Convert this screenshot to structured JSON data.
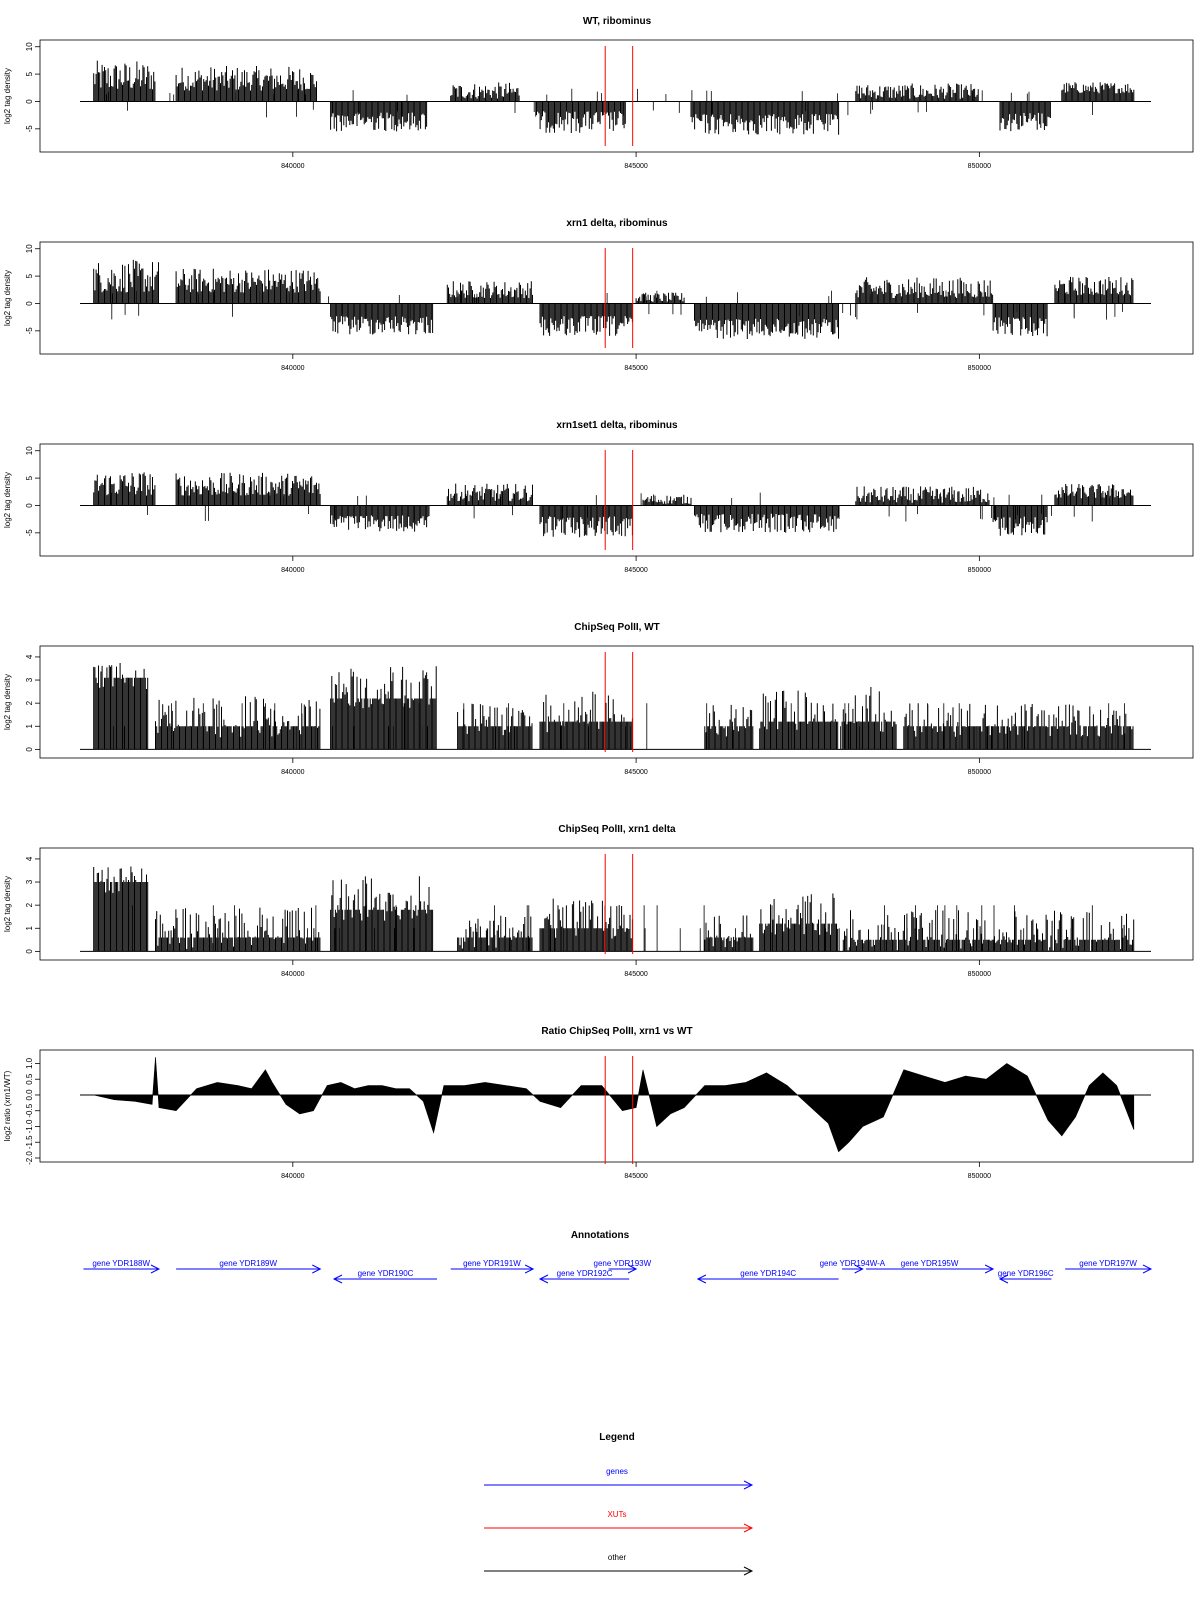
{
  "colors": {
    "genes": "#0000ff",
    "xuts": "#ff0000",
    "other": "#000000",
    "marker": "#ff0000"
  },
  "chart_data": [
    {
      "type": "bar",
      "title": "WT, ribominus",
      "ylabel": "log2 tag density",
      "ylim": [
        -8.5,
        10.5
      ],
      "yticks": [
        10,
        5,
        0,
        -5
      ],
      "ytick_labels": [
        "10",
        "5",
        "0",
        "-5"
      ],
      "xlim": [
        836900,
        852500
      ],
      "xticks": [
        840000,
        845000,
        850000
      ],
      "xtick_labels": [
        "840000",
        "845000",
        "850000"
      ],
      "markers_x": [
        844550,
        844950
      ],
      "segments": [
        {
          "start": 837100,
          "end": 838000,
          "base": 2.0,
          "peak": 7.5
        },
        {
          "start": 838300,
          "end": 840350,
          "base": 2.0,
          "peak": 6.5
        },
        {
          "start": 840550,
          "end": 841950,
          "base": -2.0,
          "peak": -5.5
        },
        {
          "start": 842300,
          "end": 843300,
          "base": 0.5,
          "peak": 3.5
        },
        {
          "start": 843550,
          "end": 844850,
          "base": -1.8,
          "peak": -5.8
        },
        {
          "start": 845800,
          "end": 847950,
          "base": -2.3,
          "peak": -6.2
        },
        {
          "start": 848200,
          "end": 850000,
          "base": 0.5,
          "peak": 3.3
        },
        {
          "start": 850300,
          "end": 851050,
          "base": -2.0,
          "peak": -5.5
        },
        {
          "start": 851200,
          "end": 852250,
          "base": 1.5,
          "peak": 3.6
        }
      ],
      "baseline": 0
    },
    {
      "type": "bar",
      "title": "xrn1 delta, ribominus",
      "ylabel": "log2 tag density",
      "ylim": [
        -8.5,
        10.5
      ],
      "yticks": [
        10,
        5,
        0,
        -5
      ],
      "ytick_labels": [
        "10",
        "5",
        "0",
        "-5"
      ],
      "xlim": [
        836900,
        852500
      ],
      "xticks": [
        840000,
        845000,
        850000
      ],
      "xtick_labels": [
        "840000",
        "845000",
        "850000"
      ],
      "markers_x": [
        844550,
        844950
      ],
      "segments": [
        {
          "start": 837100,
          "end": 838050,
          "base": 2.0,
          "peak": 8.0
        },
        {
          "start": 838300,
          "end": 840400,
          "base": 2.0,
          "peak": 6.5
        },
        {
          "start": 840550,
          "end": 842050,
          "base": -2.3,
          "peak": -5.8
        },
        {
          "start": 842250,
          "end": 843500,
          "base": 1.0,
          "peak": 4.2
        },
        {
          "start": 843600,
          "end": 844950,
          "base": -2.3,
          "peak": -6.2
        },
        {
          "start": 845000,
          "end": 845700,
          "base": 0.3,
          "peak": 2.0
        },
        {
          "start": 845850,
          "end": 847950,
          "base": -2.8,
          "peak": -6.5
        },
        {
          "start": 848200,
          "end": 850200,
          "base": 1.0,
          "peak": 4.8
        },
        {
          "start": 850200,
          "end": 851000,
          "base": -2.5,
          "peak": -6.0
        },
        {
          "start": 851100,
          "end": 852250,
          "base": 1.5,
          "peak": 5.0
        }
      ],
      "baseline": 0
    },
    {
      "type": "bar",
      "title": "xrn1set1 delta, ribominus",
      "ylabel": "log2 tag density",
      "ylim": [
        -8.5,
        10.5
      ],
      "yticks": [
        10,
        5,
        0,
        -5
      ],
      "ytick_labels": [
        "10",
        "5",
        "0",
        "-5"
      ],
      "xlim": [
        836900,
        852500
      ],
      "xticks": [
        840000,
        845000,
        850000
      ],
      "xtick_labels": [
        "840000",
        "845000",
        "850000"
      ],
      "markers_x": [
        844550,
        844950
      ],
      "segments": [
        {
          "start": 837100,
          "end": 838000,
          "base": 1.8,
          "peak": 6.5
        },
        {
          "start": 838300,
          "end": 840400,
          "base": 1.8,
          "peak": 6.0
        },
        {
          "start": 840550,
          "end": 842000,
          "base": -1.8,
          "peak": -4.8
        },
        {
          "start": 842250,
          "end": 843500,
          "base": 0.8,
          "peak": 4.0
        },
        {
          "start": 843600,
          "end": 844950,
          "base": -2.0,
          "peak": -5.8
        },
        {
          "start": 845100,
          "end": 845800,
          "base": 0.3,
          "peak": 2.0
        },
        {
          "start": 845850,
          "end": 847950,
          "base": -1.5,
          "peak": -5.0
        },
        {
          "start": 848200,
          "end": 850150,
          "base": 0.5,
          "peak": 3.5
        },
        {
          "start": 850200,
          "end": 851000,
          "base": -2.0,
          "peak": -5.8
        },
        {
          "start": 851100,
          "end": 852250,
          "base": 1.3,
          "peak": 4.0
        }
      ],
      "baseline": 0
    },
    {
      "type": "bar",
      "title": "ChipSeq PolII, WT",
      "ylabel": "log2 tag density",
      "ylim": [
        -0.2,
        4.3
      ],
      "yticks": [
        0,
        1,
        2,
        3,
        4
      ],
      "ytick_labels": [
        "0",
        "1",
        "2",
        "3",
        "4"
      ],
      "xlim": [
        836900,
        852500
      ],
      "xticks": [
        840000,
        845000,
        850000
      ],
      "xtick_labels": [
        "840000",
        "845000",
        "850000"
      ],
      "markers_x": [
        844550,
        844950
      ],
      "segments": [
        {
          "start": 837100,
          "end": 837900,
          "base": 3.1,
          "peak": 3.9
        },
        {
          "start": 838000,
          "end": 840400,
          "base": 1.0,
          "peak": 2.3
        },
        {
          "start": 840550,
          "end": 842100,
          "base": 2.2,
          "peak": 3.6
        },
        {
          "start": 842400,
          "end": 843500,
          "base": 1.0,
          "peak": 2.0
        },
        {
          "start": 843600,
          "end": 844950,
          "base": 1.2,
          "peak": 2.6
        },
        {
          "start": 846000,
          "end": 846700,
          "base": 1.0,
          "peak": 2.0
        },
        {
          "start": 846800,
          "end": 847950,
          "base": 1.2,
          "peak": 2.6
        },
        {
          "start": 848000,
          "end": 848800,
          "base": 1.2,
          "peak": 2.8
        },
        {
          "start": 848900,
          "end": 852250,
          "base": 1.0,
          "peak": 2.0
        }
      ],
      "baseline": 0
    },
    {
      "type": "bar",
      "title": "ChipSeq PolII, xrn1 delta",
      "ylabel": "log2 tag density",
      "ylim": [
        -0.2,
        4.3
      ],
      "yticks": [
        0,
        1,
        2,
        3,
        4
      ],
      "ytick_labels": [
        "0",
        "1",
        "2",
        "3",
        "4"
      ],
      "xlim": [
        836900,
        852500
      ],
      "xticks": [
        840000,
        845000,
        850000
      ],
      "xtick_labels": [
        "840000",
        "845000",
        "850000"
      ],
      "markers_x": [
        844550,
        844950
      ],
      "segments": [
        {
          "start": 837100,
          "end": 837900,
          "base": 3.0,
          "peak": 3.7
        },
        {
          "start": 838000,
          "end": 840400,
          "base": 0.6,
          "peak": 2.0
        },
        {
          "start": 840550,
          "end": 842050,
          "base": 1.8,
          "peak": 3.3
        },
        {
          "start": 842400,
          "end": 843500,
          "base": 0.6,
          "peak": 1.6
        },
        {
          "start": 843600,
          "end": 844950,
          "base": 1.0,
          "peak": 2.3
        },
        {
          "start": 846000,
          "end": 846700,
          "base": 0.6,
          "peak": 1.6
        },
        {
          "start": 846800,
          "end": 847950,
          "base": 1.2,
          "peak": 2.6
        },
        {
          "start": 848000,
          "end": 852250,
          "base": 0.5,
          "peak": 1.8
        }
      ],
      "baseline": 0
    },
    {
      "type": "area",
      "title": "Ratio ChipSeq PolII, xrn1 vs WT",
      "ylabel": "log2 ratio (xrn1/WT)",
      "ylim": [
        -2.0,
        1.3
      ],
      "yticks": [
        1.0,
        0.5,
        0.0,
        -0.5,
        -1.0,
        -1.5,
        -2.0
      ],
      "ytick_labels": [
        "1.0",
        "0.5",
        "0.0",
        "-0.5",
        "-1.0",
        "-1.5",
        "-2.0"
      ],
      "xlim": [
        836900,
        852500
      ],
      "xticks": [
        840000,
        845000,
        850000
      ],
      "xtick_labels": [
        "840000",
        "845000",
        "850000"
      ],
      "markers_x": [
        844550,
        844950
      ],
      "x": [
        837100,
        837400,
        837700,
        837950,
        838000,
        838050,
        838300,
        838600,
        838900,
        839200,
        839400,
        839600,
        839700,
        839900,
        840100,
        840300,
        840500,
        840700,
        840900,
        841100,
        841300,
        841500,
        841700,
        841900,
        842050,
        842200,
        842500,
        842800,
        843100,
        843400,
        843600,
        843900,
        844200,
        844500,
        844800,
        845000,
        845100,
        845300,
        845500,
        845700,
        846000,
        846300,
        846600,
        846900,
        847200,
        847500,
        847800,
        847950,
        848100,
        848300,
        848600,
        848900,
        849200,
        849500,
        849800,
        850100,
        850400,
        850700,
        851000,
        851200,
        851400,
        851600,
        851800,
        852000,
        852250
      ],
      "y": [
        0.0,
        -0.15,
        -0.2,
        -0.3,
        1.2,
        -0.4,
        -0.5,
        0.2,
        0.4,
        0.3,
        0.2,
        0.8,
        0.4,
        -0.3,
        -0.6,
        -0.5,
        0.3,
        0.4,
        0.2,
        0.3,
        0.3,
        0.2,
        0.2,
        -0.2,
        -1.2,
        0.3,
        0.3,
        0.4,
        0.3,
        0.2,
        -0.2,
        -0.4,
        0.3,
        0.3,
        -0.5,
        -0.4,
        0.8,
        -1.0,
        -0.6,
        -0.4,
        0.3,
        0.3,
        0.4,
        0.7,
        0.3,
        -0.3,
        -0.9,
        -1.8,
        -1.5,
        -1.0,
        -0.7,
        0.8,
        0.6,
        0.4,
        0.6,
        0.5,
        1.0,
        0.6,
        -0.8,
        -1.3,
        -0.7,
        0.3,
        0.7,
        0.3,
        -1.1
      ],
      "baseline": 0
    }
  ],
  "annotations": {
    "title": "Annotations",
    "genes": [
      {
        "label": "gene YDR188W",
        "start": 836950,
        "end": 838050,
        "strand": "+"
      },
      {
        "label": "gene YDR189W",
        "start": 838300,
        "end": 840400,
        "strand": "+"
      },
      {
        "label": "gene YDR190C",
        "start": 840600,
        "end": 842100,
        "strand": "-"
      },
      {
        "label": "gene YDR191W",
        "start": 842300,
        "end": 843500,
        "strand": "+"
      },
      {
        "label": "gene YDR192C",
        "start": 843600,
        "end": 844900,
        "strand": "-"
      },
      {
        "label": "gene YDR193W",
        "start": 844600,
        "end": 845000,
        "strand": "+"
      },
      {
        "label": "gene YDR194C",
        "start": 845900,
        "end": 847950,
        "strand": "-"
      },
      {
        "label": "gene YDR194W-A",
        "start": 848000,
        "end": 848300,
        "strand": "+"
      },
      {
        "label": "gene YDR195W",
        "start": 848350,
        "end": 850200,
        "strand": "+"
      },
      {
        "label": "gene YDR196C",
        "start": 850300,
        "end": 851050,
        "strand": "-"
      },
      {
        "label": "gene YDR197W",
        "start": 851250,
        "end": 852500,
        "strand": "+"
      }
    ]
  },
  "legend": {
    "title": "Legend",
    "items": [
      {
        "label": "genes",
        "color": "#0000ff"
      },
      {
        "label": "XUTs",
        "color": "#ff0000"
      },
      {
        "label": "other",
        "color": "#000000"
      }
    ]
  }
}
